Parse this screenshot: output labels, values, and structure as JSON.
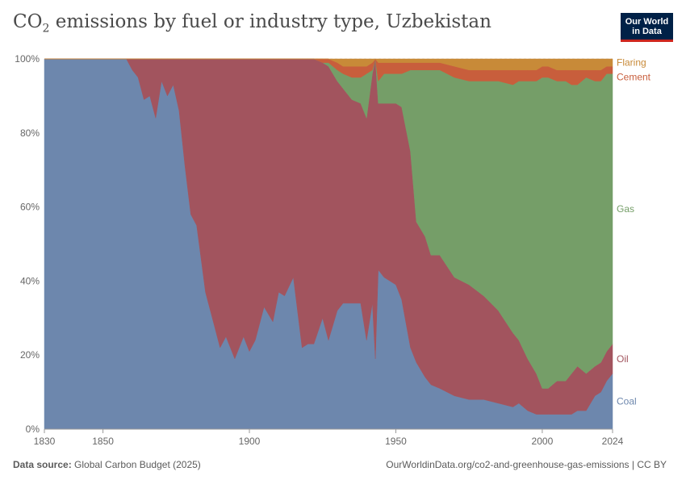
{
  "header": {
    "title_prefix": "CO",
    "title_sub": "2",
    "title_rest": " emissions by fuel or industry type, Uzbekistan",
    "logo_line1": "Our World",
    "logo_line2": "in Data"
  },
  "footer": {
    "source_label": "Data source:",
    "source_text": " Global Carbon Budget (2025)",
    "right_text": "OurWorldinData.org/co2-and-greenhouse-gas-emissions | CC BY"
  },
  "chart_data": {
    "type": "area",
    "stacked": true,
    "normalized": true,
    "title": "CO₂ emissions by fuel or industry type, Uzbekistan",
    "xlabel": "",
    "ylabel": "",
    "xlim": [
      1830,
      2024
    ],
    "ylim": [
      0,
      100
    ],
    "x_ticks": [
      "1830",
      "1850",
      "1900",
      "1950",
      "2000",
      "2024"
    ],
    "y_ticks": [
      "0%",
      "20%",
      "40%",
      "60%",
      "80%",
      "100%"
    ],
    "grid": true,
    "legend_position": "right",
    "x": [
      1830,
      1858,
      1860,
      1862,
      1864,
      1866,
      1868,
      1870,
      1872,
      1874,
      1876,
      1878,
      1880,
      1882,
      1885,
      1888,
      1890,
      1892,
      1895,
      1898,
      1900,
      1902,
      1905,
      1908,
      1910,
      1912,
      1915,
      1918,
      1920,
      1922,
      1925,
      1927,
      1930,
      1932,
      1935,
      1938,
      1940,
      1942,
      1943,
      1944,
      1946,
      1950,
      1952,
      1955,
      1957,
      1960,
      1962,
      1965,
      1970,
      1975,
      1980,
      1985,
      1990,
      1992,
      1995,
      1998,
      2000,
      2002,
      2005,
      2008,
      2010,
      2012,
      2015,
      2018,
      2020,
      2022,
      2024
    ],
    "series": [
      {
        "name": "Coal",
        "color": "#6d87ad",
        "values": [
          100,
          100,
          97,
          95,
          89,
          90,
          84,
          94,
          90,
          93,
          86,
          71,
          58,
          55,
          37,
          28,
          22,
          25,
          19,
          25,
          21,
          24,
          33,
          29,
          37,
          36,
          41,
          22,
          23,
          23,
          30,
          24,
          32,
          34,
          34,
          34,
          24,
          34,
          19,
          43,
          41,
          39,
          35,
          22,
          18,
          14,
          12,
          11,
          9,
          8,
          8,
          7,
          6,
          7,
          5,
          4,
          4,
          4,
          4,
          4,
          4,
          5,
          5,
          9,
          10,
          13,
          15
        ]
      },
      {
        "name": "Oil",
        "color": "#a2545e",
        "values": [
          0,
          0,
          3,
          5,
          11,
          10,
          16,
          6,
          10,
          7,
          14,
          29,
          42,
          45,
          63,
          72,
          78,
          75,
          81,
          75,
          79,
          76,
          67,
          71,
          63,
          64,
          59,
          78,
          77,
          77,
          69,
          74,
          62,
          58,
          55,
          54,
          60,
          62,
          81,
          45,
          47,
          49,
          52,
          53,
          38,
          38,
          35,
          36,
          32,
          31,
          28,
          25,
          20,
          17,
          14,
          11,
          7,
          7,
          9,
          9,
          11,
          12,
          10,
          8,
          8,
          8,
          8
        ]
      },
      {
        "name": "Gas",
        "color": "#759e68",
        "values": [
          0,
          0,
          0,
          0,
          0,
          0,
          0,
          0,
          0,
          0,
          0,
          0,
          0,
          0,
          0,
          0,
          0,
          0,
          0,
          0,
          0,
          0,
          0,
          0,
          0,
          0,
          0,
          0,
          0,
          0,
          0,
          1,
          3,
          4,
          6,
          7,
          12,
          1,
          0,
          6,
          8,
          8,
          9,
          22,
          41,
          45,
          50,
          50,
          54,
          55,
          58,
          62,
          67,
          70,
          75,
          79,
          84,
          84,
          81,
          81,
          78,
          76,
          80,
          77,
          76,
          75,
          73
        ]
      },
      {
        "name": "Cement",
        "color": "#c85e3c",
        "values": [
          0,
          0,
          0,
          0,
          0,
          0,
          0,
          0,
          0,
          0,
          0,
          0,
          0,
          0,
          0,
          0,
          0,
          0,
          0,
          0,
          0,
          0,
          0,
          0,
          0,
          0,
          0,
          0,
          0,
          0,
          1,
          1,
          2,
          2,
          3,
          3,
          2,
          2,
          0,
          5,
          3,
          3,
          3,
          2,
          2,
          2,
          2,
          2,
          3,
          3,
          3,
          3,
          4,
          3,
          3,
          3,
          3,
          3,
          3,
          3,
          4,
          4,
          2,
          3,
          3,
          2,
          2
        ]
      },
      {
        "name": "Flaring",
        "color": "#c88a38",
        "values": [
          0,
          0,
          0,
          0,
          0,
          0,
          0,
          0,
          0,
          0,
          0,
          0,
          0,
          0,
          0,
          0,
          0,
          0,
          0,
          0,
          0,
          0,
          0,
          0,
          0,
          0,
          0,
          0,
          0,
          0,
          0,
          0,
          1,
          2,
          2,
          2,
          2,
          1,
          0,
          1,
          1,
          1,
          1,
          1,
          1,
          1,
          1,
          1,
          2,
          3,
          3,
          3,
          3,
          3,
          3,
          3,
          2,
          2,
          3,
          3,
          3,
          3,
          3,
          3,
          3,
          2,
          2
        ]
      }
    ],
    "legend_labels": [
      "Flaring",
      "Cement",
      "Gas",
      "Oil",
      "Coal"
    ],
    "legend_colors": {
      "Flaring": "#c88a38",
      "Cement": "#c85e3c",
      "Gas": "#759e68",
      "Oil": "#a2545e",
      "Coal": "#6d87ad"
    }
  }
}
